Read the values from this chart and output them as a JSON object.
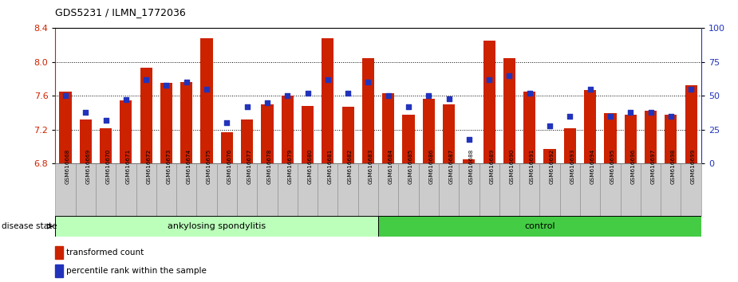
{
  "title": "GDS5231 / ILMN_1772036",
  "samples": [
    "GSM616668",
    "GSM616669",
    "GSM616670",
    "GSM616671",
    "GSM616672",
    "GSM616673",
    "GSM616674",
    "GSM616675",
    "GSM616676",
    "GSM616677",
    "GSM616678",
    "GSM616679",
    "GSM616680",
    "GSM616681",
    "GSM616682",
    "GSM616683",
    "GSM616684",
    "GSM616685",
    "GSM616686",
    "GSM616687",
    "GSM616688",
    "GSM616689",
    "GSM616690",
    "GSM616691",
    "GSM616692",
    "GSM616693",
    "GSM616694",
    "GSM616695",
    "GSM616696",
    "GSM616697",
    "GSM616698",
    "GSM616699"
  ],
  "red_values": [
    7.65,
    7.32,
    7.22,
    7.55,
    7.93,
    7.75,
    7.76,
    8.28,
    7.17,
    7.32,
    7.5,
    7.6,
    7.48,
    8.28,
    7.47,
    8.05,
    7.63,
    7.38,
    7.57,
    7.5,
    6.85,
    8.25,
    8.05,
    7.65,
    6.97,
    7.22,
    7.67,
    7.4,
    7.38,
    7.42,
    7.38,
    7.73
  ],
  "blue_percentiles": [
    50,
    38,
    32,
    47,
    62,
    58,
    60,
    55,
    30,
    42,
    45,
    50,
    52,
    62,
    52,
    60,
    50,
    42,
    50,
    48,
    18,
    62,
    65,
    52,
    28,
    35,
    55,
    35,
    38,
    38,
    35,
    55
  ],
  "ylim_left": [
    6.8,
    8.4
  ],
  "ylim_right": [
    0,
    100
  ],
  "yticks_left": [
    6.8,
    7.2,
    7.6,
    8.0,
    8.4
  ],
  "yticks_right": [
    0,
    25,
    50,
    75,
    100
  ],
  "baseline": 6.8,
  "bar_color": "#cc2200",
  "blue_color": "#2233bb",
  "ankylosing_color": "#bbffbb",
  "control_color": "#44cc44",
  "ankylosing_label": "ankylosing spondylitis",
  "control_label": "control",
  "n_ankylosing": 16,
  "n_control": 16,
  "legend_red_label": "transformed count",
  "legend_blue_label": "percentile rank within the sample",
  "disease_state_label": "disease state"
}
